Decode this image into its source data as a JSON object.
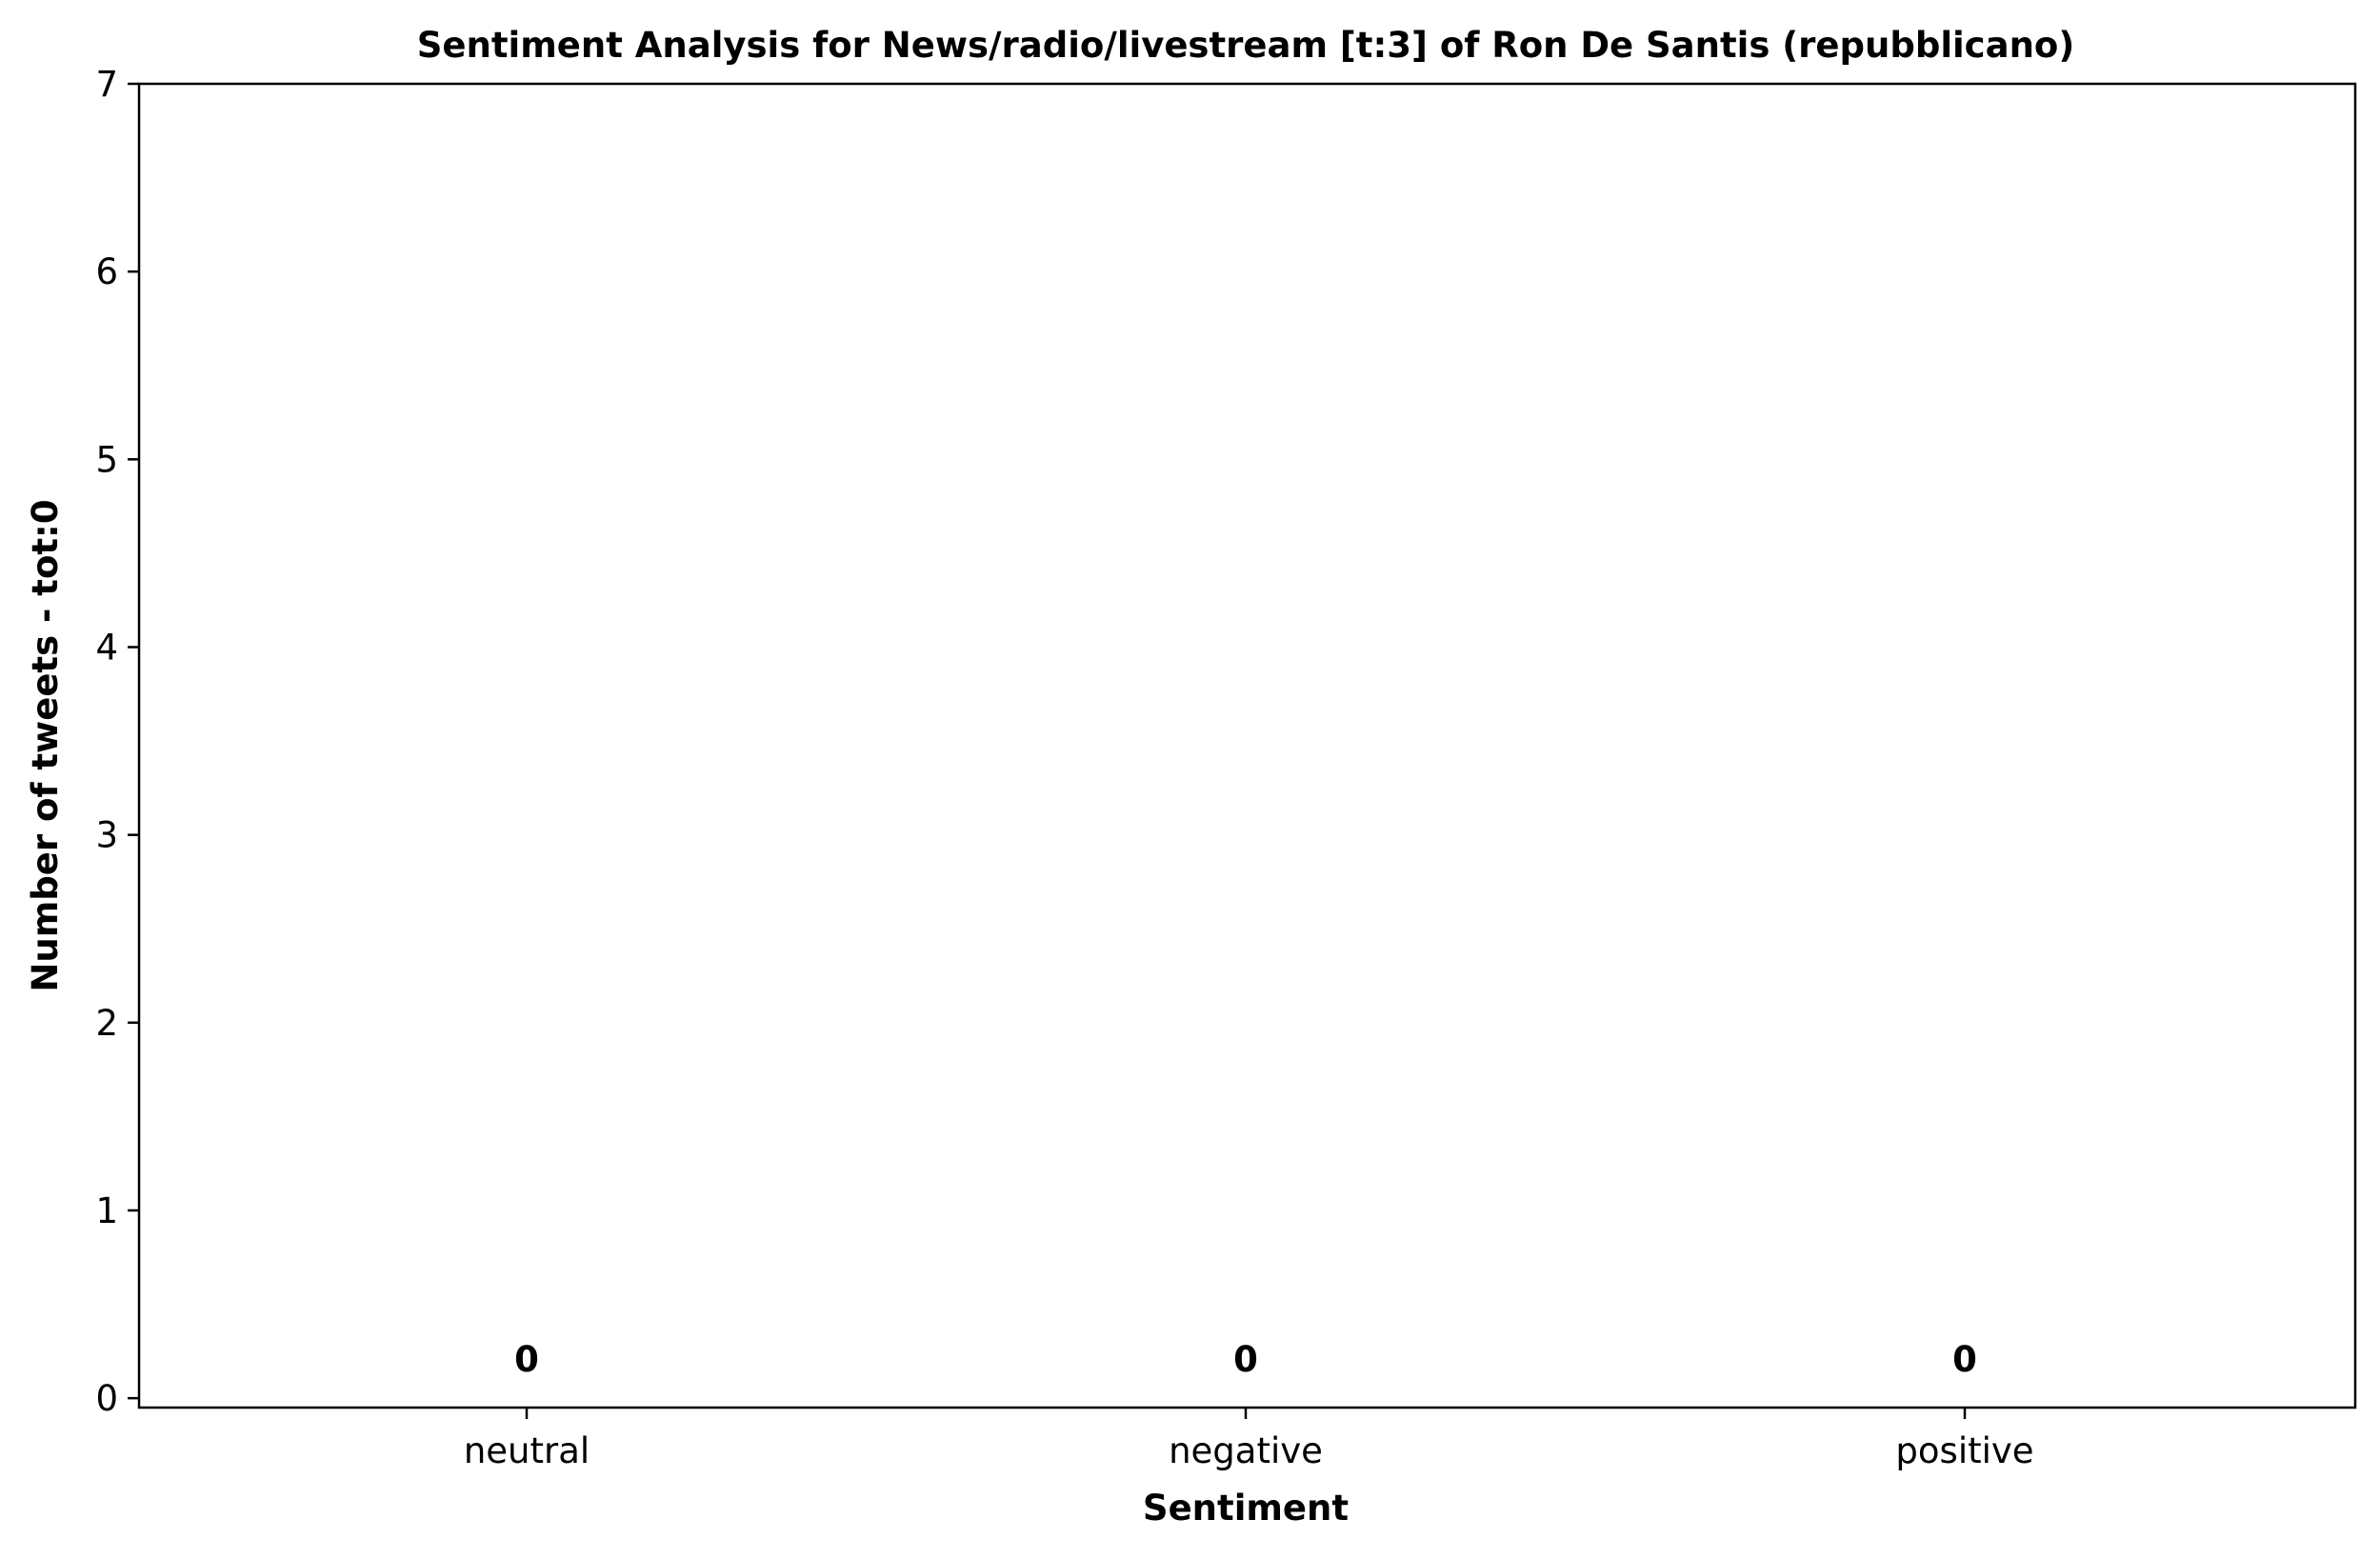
{
  "chart_data": {
    "type": "bar",
    "title": "Sentiment Analysis for News/radio/livestream [t:3] of Ron De Santis (repubblicano)",
    "xlabel": "Sentiment",
    "ylabel": "Number of tweets - tot:0",
    "categories": [
      "neutral",
      "negative",
      "positive"
    ],
    "values": [
      0,
      0,
      0
    ],
    "data_labels": [
      "0",
      "0",
      "0"
    ],
    "ylim": [
      -0.05,
      7
    ],
    "yticks": [
      0,
      1,
      2,
      3,
      4,
      5,
      6,
      7
    ],
    "ytick_labels": [
      "0",
      "1",
      "2",
      "3",
      "4",
      "5",
      "6",
      "7"
    ],
    "grid": false,
    "legend": "none"
  }
}
